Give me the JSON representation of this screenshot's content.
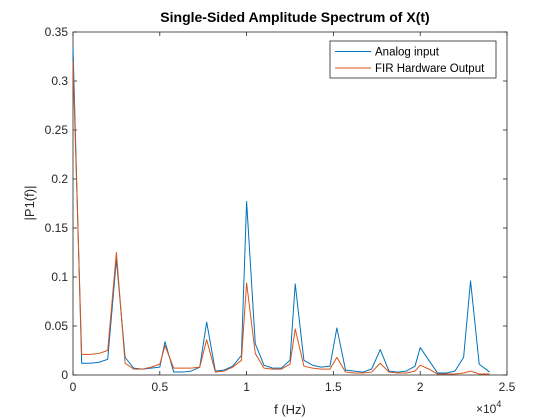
{
  "chart_data": {
    "type": "line",
    "title": "Single-Sided Amplitude Spectrum of X(t)",
    "xlabel": "f (Hz)",
    "ylabel": "|P1(f)|",
    "x_exponent_base": "×10",
    "x_exponent_power": "4",
    "xlim": [
      0,
      25000
    ],
    "ylim": [
      0,
      0.35
    ],
    "x_ticks": [
      0,
      5000,
      10000,
      15000,
      20000,
      25000
    ],
    "x_tick_labels": [
      "0",
      "0.5",
      "1",
      "1.5",
      "2",
      "2.5"
    ],
    "y_ticks": [
      0,
      0.05,
      0.1,
      0.15,
      0.2,
      0.25,
      0.3,
      0.35
    ],
    "y_tick_labels": [
      "0",
      "0.05",
      "0.1",
      "0.15",
      "0.2",
      "0.25",
      "0.3",
      "0.35"
    ],
    "grid": false,
    "legend_position": "top-right",
    "x": [
      0,
      500,
      1000,
      1500,
      2000,
      2500,
      3000,
      3500,
      4000,
      4500,
      5000,
      5300,
      5800,
      6300,
      6800,
      7300,
      7700,
      8200,
      8700,
      9200,
      9700,
      10000,
      10500,
      11000,
      11500,
      12000,
      12500,
      12800,
      13300,
      13800,
      14300,
      14800,
      15200,
      15700,
      16200,
      16700,
      17200,
      17700,
      18200,
      18700,
      19200,
      19700,
      20000,
      20500,
      21000,
      21500,
      22000,
      22500,
      22900,
      23400,
      24000
    ],
    "series": [
      {
        "name": "Analog input",
        "color": "#0072bd",
        "values": [
          0.335,
          0.012,
          0.012,
          0.013,
          0.016,
          0.118,
          0.018,
          0.007,
          0.006,
          0.007,
          0.008,
          0.034,
          0.003,
          0.003,
          0.004,
          0.008,
          0.054,
          0.004,
          0.005,
          0.009,
          0.02,
          0.177,
          0.032,
          0.01,
          0.007,
          0.007,
          0.015,
          0.093,
          0.015,
          0.01,
          0.008,
          0.009,
          0.048,
          0.005,
          0.004,
          0.003,
          0.006,
          0.026,
          0.004,
          0.003,
          0.004,
          0.009,
          0.028,
          0.015,
          0.002,
          0.002,
          0.004,
          0.018,
          0.096,
          0.011,
          0.003
        ]
      },
      {
        "name": "FIR Hardware Output",
        "color": "#d95319",
        "values": [
          0.32,
          0.021,
          0.021,
          0.022,
          0.025,
          0.125,
          0.012,
          0.006,
          0.006,
          0.008,
          0.011,
          0.03,
          0.007,
          0.007,
          0.007,
          0.008,
          0.036,
          0.003,
          0.004,
          0.008,
          0.015,
          0.094,
          0.022,
          0.007,
          0.006,
          0.006,
          0.011,
          0.047,
          0.009,
          0.007,
          0.006,
          0.006,
          0.018,
          0.003,
          0.002,
          0.002,
          0.003,
          0.012,
          0.003,
          0.002,
          0.002,
          0.004,
          0.01,
          0.006,
          0.001,
          0.001,
          0.001,
          0.002,
          0.004,
          0.001,
          0.001
        ]
      }
    ]
  }
}
